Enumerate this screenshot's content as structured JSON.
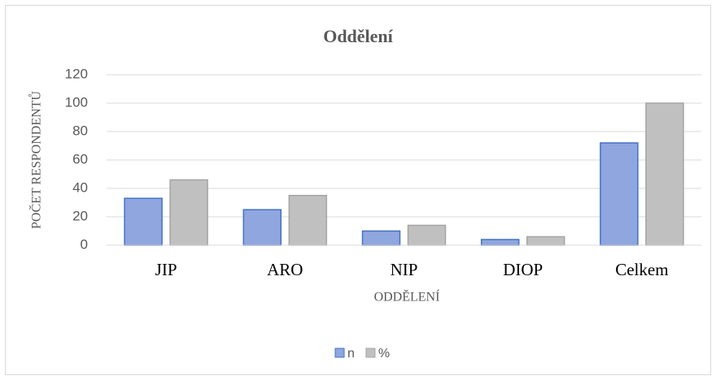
{
  "chart_data": {
    "type": "bar",
    "title": "Oddělení",
    "x_label": "ODDĚLENÍ",
    "y_label": "POČET RESPONDENTŮ",
    "categories": [
      "JIP",
      "ARO",
      "NIP",
      "DIOP",
      "Celkem"
    ],
    "series": [
      {
        "name": "n",
        "color": "#8fa6df",
        "values": [
          33,
          25,
          10,
          4,
          72
        ]
      },
      {
        "name": "%",
        "color": "#c0c0c0",
        "values": [
          46,
          35,
          14,
          6,
          100
        ]
      }
    ],
    "ylim": [
      0,
      120
    ],
    "yticks": [
      0,
      20,
      40,
      60,
      80,
      100,
      120
    ],
    "grid": true,
    "legend": "bottom"
  }
}
